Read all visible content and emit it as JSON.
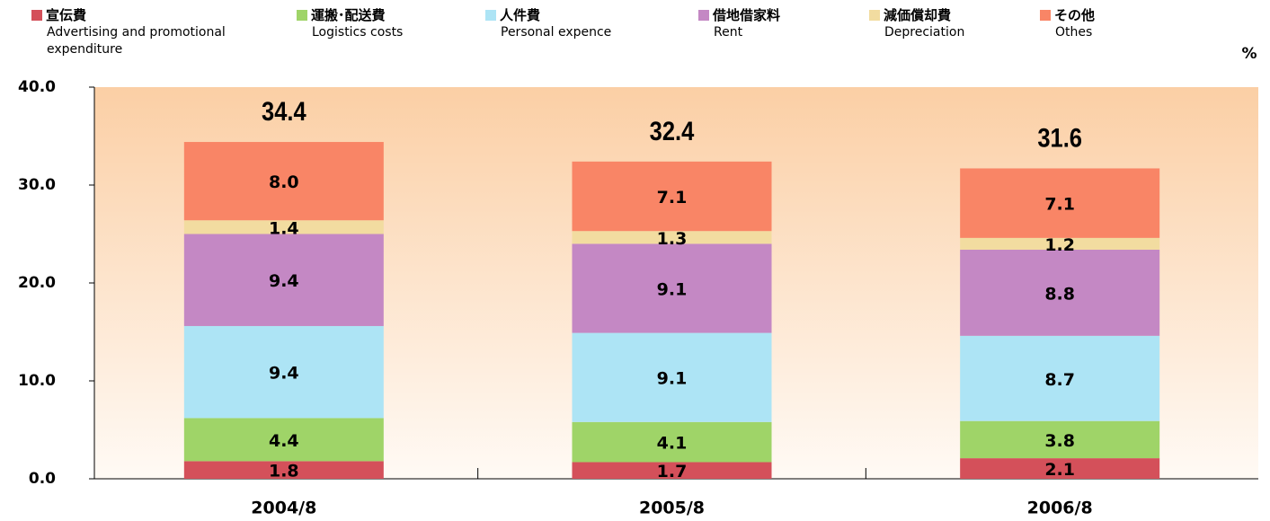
{
  "chart_data": {
    "type": "stacked_bar",
    "unit": "%",
    "categories": [
      "2004/8",
      "2005/8",
      "2006/8"
    ],
    "series": [
      {
        "name": "宣伝費",
        "name_en": "Advertising and promotional expenditure",
        "color": "#d4505a",
        "values": [
          1.8,
          1.7,
          2.1
        ],
        "value_labels": [
          "1.8",
          "1.7",
          "2.1"
        ]
      },
      {
        "name": "運搬･配送費",
        "name_en": "Logistics costs",
        "color": "#9fd468",
        "values": [
          4.4,
          4.1,
          3.8
        ],
        "value_labels": [
          "4.4",
          "4.1",
          "3.8"
        ]
      },
      {
        "name": "人件費",
        "name_en": "Personal expence",
        "color": "#ade4f5",
        "values": [
          9.4,
          9.1,
          8.7
        ],
        "value_labels": [
          "9.4",
          "9.1",
          "8.7"
        ]
      },
      {
        "name": "借地借家料",
        "name_en": "Rent",
        "color": "#c488c4",
        "values": [
          9.4,
          9.1,
          8.8
        ],
        "value_labels": [
          "9.4",
          "9.1",
          "8.8"
        ]
      },
      {
        "name": "減価償却費",
        "name_en": "Depreciation",
        "color": "#f2dca0",
        "values": [
          1.4,
          1.3,
          1.2
        ],
        "value_labels": [
          "1.4",
          "1.3",
          "1.2"
        ]
      },
      {
        "name": "その他",
        "name_en": "Othes",
        "color": "#f98566",
        "values": [
          8.0,
          7.1,
          7.1
        ],
        "value_labels": [
          "8.0",
          "7.1",
          "7.1"
        ]
      }
    ],
    "totals": [
      34.4,
      32.4,
      31.6
    ],
    "ylim": [
      0,
      40
    ],
    "yticks": [
      {
        "value": 0,
        "label": "0.0"
      },
      {
        "value": 10,
        "label": "10.0"
      },
      {
        "value": 20,
        "label": "20.0"
      },
      {
        "value": 30,
        "label": "30.0"
      },
      {
        "value": 40,
        "label": "40.0"
      }
    ]
  }
}
